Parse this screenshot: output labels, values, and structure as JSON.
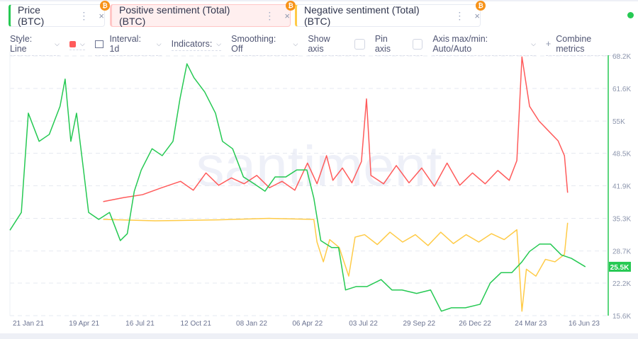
{
  "metrics": [
    {
      "label": "Price (BTC)",
      "color": "#26c953",
      "bg": "#ffffff"
    },
    {
      "label": "Positive sentiment (Total) (BTC)",
      "color": "#ff5b5b",
      "bg": "#ffefef"
    },
    {
      "label": "Negative sentiment (Total) (BTC)",
      "color": "#ffcb47",
      "bg": "#ffffff"
    }
  ],
  "icons": {
    "menu": "⋮",
    "close": "×",
    "btc": "₿",
    "chevron": "⌵",
    "plus": "+"
  },
  "toolbar": {
    "style": "Style: Line",
    "interval": "Interval: 1d",
    "indicators": "Indicators:",
    "smoothing": "Smoothing: Off",
    "show_axis": "Show axis",
    "pin_axis": "Pin axis",
    "axis_maxmin": "Axis max/min: Auto/Auto",
    "combine": "Combine metrics"
  },
  "watermark": "santiment",
  "chart_data": {
    "type": "line",
    "xlabel": "",
    "ylabel": "",
    "x_unit": "days since 21 Jan 21",
    "xlim": [
      -29,
      914
    ],
    "ylim": [
      15.6,
      68.2
    ],
    "y_ticks": [
      "68.2K",
      "61.6K",
      "55K",
      "48.5K",
      "41.9K",
      "35.3K",
      "28.7K",
      "22.2K",
      "15.6K"
    ],
    "y_tick_values": [
      68.2,
      61.6,
      55,
      48.5,
      41.9,
      35.3,
      28.7,
      22.2,
      15.6
    ],
    "x_ticks": [
      {
        "t": 0,
        "label": "21 Jan 21"
      },
      {
        "t": 88,
        "label": "19 Apr 21"
      },
      {
        "t": 176,
        "label": "16 Jul 21"
      },
      {
        "t": 264,
        "label": "12 Oct 21"
      },
      {
        "t": 352,
        "label": "08 Jan 22"
      },
      {
        "t": 440,
        "label": "06 Apr 22"
      },
      {
        "t": 528,
        "label": "03 Jul 22"
      },
      {
        "t": 616,
        "label": "29 Sep 22"
      },
      {
        "t": 704,
        "label": "26 Dec 22"
      },
      {
        "t": 792,
        "label": "24 Mar 23"
      },
      {
        "t": 876,
        "label": "16 Jun 23"
      }
    ],
    "current_value_label": "25.5K",
    "series": [
      {
        "name": "Price (BTC)",
        "color": "#26c953",
        "points": [
          [
            -29,
            32.9
          ],
          [
            -11,
            36.5
          ],
          [
            0,
            56.6
          ],
          [
            17,
            50.9
          ],
          [
            33,
            52.3
          ],
          [
            50,
            58.0
          ],
          [
            58,
            63.5
          ],
          [
            67,
            50.9
          ],
          [
            76,
            56.6
          ],
          [
            87,
            45.1
          ],
          [
            95,
            36.5
          ],
          [
            111,
            35.1
          ],
          [
            128,
            36.5
          ],
          [
            145,
            30.8
          ],
          [
            156,
            32.2
          ],
          [
            167,
            40.8
          ],
          [
            178,
            45.1
          ],
          [
            195,
            49.4
          ],
          [
            211,
            48.0
          ],
          [
            228,
            50.9
          ],
          [
            239,
            59.5
          ],
          [
            250,
            66.6
          ],
          [
            261,
            63.8
          ],
          [
            278,
            60.9
          ],
          [
            295,
            56.6
          ],
          [
            306,
            50.9
          ],
          [
            322,
            49.4
          ],
          [
            339,
            43.7
          ],
          [
            356,
            42.3
          ],
          [
            373,
            40.8
          ],
          [
            389,
            43.7
          ],
          [
            406,
            43.7
          ],
          [
            423,
            45.1
          ],
          [
            439,
            45.1
          ],
          [
            450,
            39.4
          ],
          [
            461,
            30.8
          ],
          [
            478,
            29.4
          ],
          [
            489,
            29.4
          ],
          [
            500,
            20.8
          ],
          [
            517,
            21.5
          ],
          [
            534,
            21.5
          ],
          [
            556,
            22.9
          ],
          [
            573,
            20.8
          ],
          [
            589,
            20.8
          ],
          [
            612,
            20.1
          ],
          [
            634,
            20.8
          ],
          [
            651,
            16.5
          ],
          [
            667,
            17.2
          ],
          [
            689,
            17.2
          ],
          [
            712,
            17.9
          ],
          [
            728,
            22.2
          ],
          [
            745,
            24.3
          ],
          [
            762,
            24.3
          ],
          [
            778,
            26.5
          ],
          [
            790,
            28.6
          ],
          [
            806,
            30.1
          ],
          [
            823,
            30.1
          ],
          [
            840,
            27.9
          ],
          [
            856,
            27.2
          ],
          [
            878,
            25.5
          ]
        ]
      },
      {
        "name": "Positive sentiment (Total) (BTC)",
        "color": "#ff5b5b",
        "points": [
          [
            118,
            38.7
          ],
          [
            150,
            39.5
          ],
          [
            180,
            40.1
          ],
          [
            210,
            41.5
          ],
          [
            240,
            42.8
          ],
          [
            260,
            41.0
          ],
          [
            280,
            44.5
          ],
          [
            300,
            42.0
          ],
          [
            320,
            43.5
          ],
          [
            340,
            42.3
          ],
          [
            360,
            44.0
          ],
          [
            380,
            41.5
          ],
          [
            400,
            42.8
          ],
          [
            420,
            41.0
          ],
          [
            440,
            46.5
          ],
          [
            455,
            42.3
          ],
          [
            470,
            48.0
          ],
          [
            480,
            43.0
          ],
          [
            495,
            45.5
          ],
          [
            510,
            42.5
          ],
          [
            525,
            46.8
          ],
          [
            533,
            59.5
          ],
          [
            540,
            44.0
          ],
          [
            560,
            42.3
          ],
          [
            580,
            46.0
          ],
          [
            600,
            42.5
          ],
          [
            620,
            45.5
          ],
          [
            640,
            41.8
          ],
          [
            660,
            46.5
          ],
          [
            680,
            42.0
          ],
          [
            700,
            44.5
          ],
          [
            720,
            42.3
          ],
          [
            740,
            45.0
          ],
          [
            758,
            43.0
          ],
          [
            770,
            47.0
          ],
          [
            778,
            68.0
          ],
          [
            790,
            58.0
          ],
          [
            805,
            55.0
          ],
          [
            820,
            53.0
          ],
          [
            835,
            51.0
          ],
          [
            845,
            48.0
          ],
          [
            850,
            40.5
          ]
        ]
      },
      {
        "name": "Negative sentiment (Total) (BTC)",
        "color": "#ffcb47",
        "points": [
          [
            118,
            35.1
          ],
          [
            200,
            34.8
          ],
          [
            300,
            35.0
          ],
          [
            380,
            35.3
          ],
          [
            450,
            35.1
          ],
          [
            455,
            30.5
          ],
          [
            465,
            26.5
          ],
          [
            475,
            31.0
          ],
          [
            490,
            29.4
          ],
          [
            505,
            23.6
          ],
          [
            515,
            31.5
          ],
          [
            530,
            32.0
          ],
          [
            550,
            30.0
          ],
          [
            570,
            32.5
          ],
          [
            590,
            30.5
          ],
          [
            610,
            32.0
          ],
          [
            630,
            29.8
          ],
          [
            650,
            32.5
          ],
          [
            670,
            30.2
          ],
          [
            690,
            32.0
          ],
          [
            710,
            30.5
          ],
          [
            730,
            32.2
          ],
          [
            750,
            31.0
          ],
          [
            770,
            33.0
          ],
          [
            778,
            16.5
          ],
          [
            785,
            25.0
          ],
          [
            800,
            23.6
          ],
          [
            815,
            27.0
          ],
          [
            830,
            26.5
          ],
          [
            845,
            28.0
          ],
          [
            850,
            34.4
          ]
        ]
      }
    ]
  }
}
